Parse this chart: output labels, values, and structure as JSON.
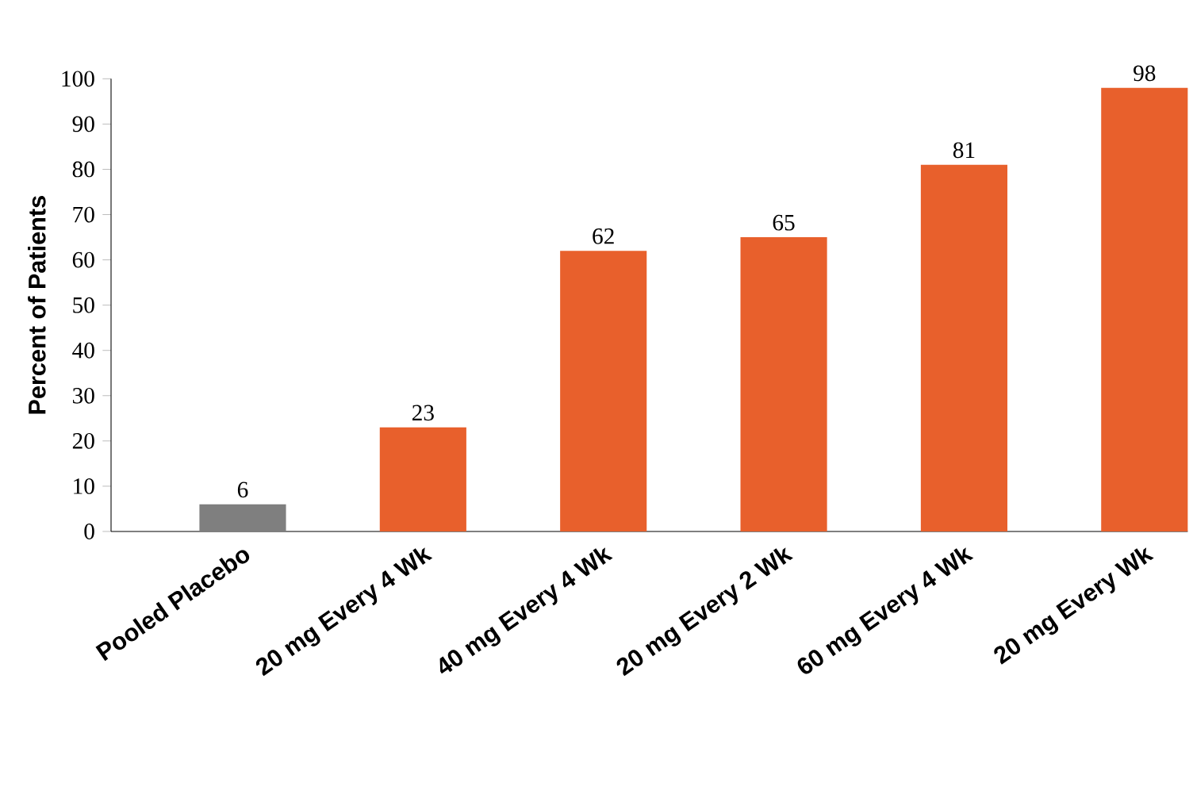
{
  "chart_data": {
    "type": "bar",
    "ylabel": "Percent of Patients",
    "categories": [
      "Pooled Placebo",
      "20 mg Every 4 Wk",
      "40 mg Every 4 Wk",
      "20 mg Every 2 Wk",
      "60 mg Every 4 Wk",
      "20 mg Every Wk"
    ],
    "values": [
      6,
      23,
      62,
      65,
      81,
      98
    ],
    "colors": [
      "#7f7f7f",
      "#e8602c",
      "#e8602c",
      "#e8602c",
      "#e8602c",
      "#e8602c"
    ],
    "ylim": [
      0,
      100
    ],
    "yticks": [
      0,
      10,
      20,
      30,
      40,
      50,
      60,
      70,
      80,
      90,
      100
    ],
    "data_labels": true,
    "grid": false
  }
}
